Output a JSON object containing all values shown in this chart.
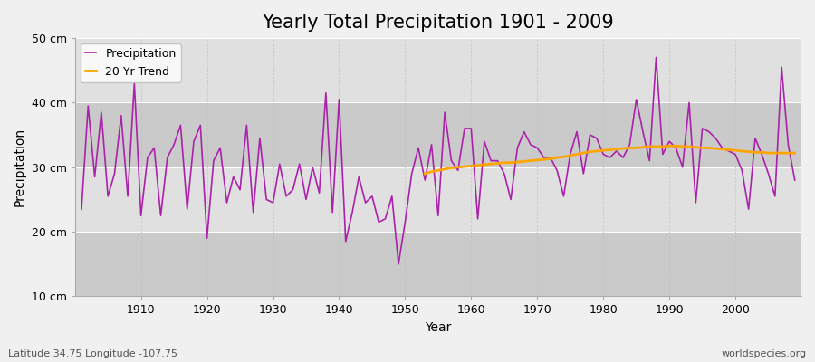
{
  "title": "Yearly Total Precipitation 1901 - 2009",
  "xlabel": "Year",
  "ylabel": "Precipitation",
  "subtitle": "Latitude 34.75 Longitude -107.75",
  "watermark": "worldspecies.org",
  "years": [
    1901,
    1902,
    1903,
    1904,
    1905,
    1906,
    1907,
    1908,
    1909,
    1910,
    1911,
    1912,
    1913,
    1914,
    1915,
    1916,
    1917,
    1918,
    1919,
    1920,
    1921,
    1922,
    1923,
    1924,
    1925,
    1926,
    1927,
    1928,
    1929,
    1930,
    1931,
    1932,
    1933,
    1934,
    1935,
    1936,
    1937,
    1938,
    1939,
    1940,
    1941,
    1942,
    1943,
    1944,
    1945,
    1946,
    1947,
    1948,
    1949,
    1950,
    1951,
    1952,
    1953,
    1954,
    1955,
    1956,
    1957,
    1958,
    1959,
    1960,
    1961,
    1962,
    1963,
    1964,
    1965,
    1966,
    1967,
    1968,
    1969,
    1970,
    1971,
    1972,
    1973,
    1974,
    1975,
    1976,
    1977,
    1978,
    1979,
    1980,
    1981,
    1982,
    1983,
    1984,
    1985,
    1986,
    1987,
    1988,
    1989,
    1990,
    1991,
    1992,
    1993,
    1994,
    1995,
    1996,
    1997,
    1998,
    1999,
    2000,
    2001,
    2002,
    2003,
    2004,
    2005,
    2006,
    2007,
    2008,
    2009
  ],
  "precipitation": [
    23.5,
    39.5,
    28.5,
    38.5,
    25.5,
    29.0,
    38.0,
    25.5,
    43.0,
    22.5,
    31.5,
    33.0,
    22.5,
    31.5,
    33.5,
    36.5,
    23.5,
    34.0,
    36.5,
    19.0,
    31.0,
    33.0,
    24.5,
    28.5,
    26.5,
    36.5,
    23.0,
    34.5,
    25.0,
    24.5,
    30.5,
    25.5,
    26.5,
    30.5,
    25.0,
    30.0,
    26.0,
    41.5,
    23.0,
    40.5,
    18.5,
    23.0,
    28.5,
    24.5,
    25.5,
    21.5,
    22.0,
    25.5,
    15.0,
    21.5,
    29.0,
    33.0,
    28.0,
    33.5,
    22.5,
    38.5,
    31.0,
    29.5,
    36.0,
    36.0,
    22.0,
    34.0,
    31.0,
    31.0,
    29.0,
    25.0,
    33.0,
    35.5,
    33.5,
    33.0,
    31.5,
    31.5,
    29.5,
    25.5,
    32.0,
    35.5,
    29.0,
    35.0,
    34.5,
    32.0,
    31.5,
    32.5,
    31.5,
    33.5,
    40.5,
    35.5,
    31.0,
    47.0,
    32.0,
    34.0,
    33.0,
    30.0,
    40.0,
    24.5,
    36.0,
    35.5,
    34.5,
    33.0,
    32.5,
    32.0,
    29.5,
    23.5,
    34.5,
    32.0,
    29.0,
    25.5,
    45.5,
    33.5,
    28.0
  ],
  "trend_years": [
    1953,
    1954,
    1955,
    1956,
    1957,
    1958,
    1959,
    1960,
    1961,
    1962,
    1963,
    1964,
    1965,
    1966,
    1967,
    1968,
    1969,
    1970,
    1971,
    1972,
    1973,
    1974,
    1975,
    1976,
    1977,
    1978,
    1979,
    1980,
    1981,
    1982,
    1983,
    1984,
    1985,
    1986,
    1987,
    1988,
    1989,
    1990,
    1991,
    1992,
    1993,
    1994,
    1995,
    1996,
    1997,
    1998,
    1999,
    2000,
    2001,
    2002,
    2003,
    2004,
    2005,
    2006,
    2007,
    2008,
    2009
  ],
  "trend": [
    29.0,
    29.3,
    29.5,
    29.7,
    29.9,
    30.0,
    30.1,
    30.2,
    30.3,
    30.4,
    30.5,
    30.6,
    30.7,
    30.7,
    30.8,
    30.9,
    31.0,
    31.1,
    31.2,
    31.3,
    31.5,
    31.6,
    31.8,
    32.0,
    32.2,
    32.4,
    32.5,
    32.6,
    32.7,
    32.8,
    32.9,
    33.0,
    33.0,
    33.1,
    33.2,
    33.2,
    33.2,
    33.3,
    33.3,
    33.2,
    33.2,
    33.1,
    33.0,
    33.0,
    32.9,
    32.8,
    32.7,
    32.6,
    32.5,
    32.4,
    32.3,
    32.3,
    32.2,
    32.2,
    32.2,
    32.2,
    32.2
  ],
  "precip_color": "#AA22AA",
  "trend_color": "#FFA500",
  "fig_bg_color": "#F0F0F0",
  "plot_bg_color": "#E8E8E8",
  "band_color_light": "#E0E0E0",
  "band_color_dark": "#CACACA",
  "ylim": [
    10,
    50
  ],
  "yticks": [
    10,
    20,
    30,
    40,
    50
  ],
  "ytick_labels": [
    "10 cm",
    "20 cm",
    "30 cm",
    "40 cm",
    "50 cm"
  ],
  "xlim": [
    1900,
    2010
  ],
  "xticks": [
    1910,
    1920,
    1930,
    1940,
    1950,
    1960,
    1970,
    1980,
    1990,
    2000
  ],
  "hgrid_color": "#FFFFFF",
  "vgrid_color": "#C0C0C0",
  "title_fontsize": 15,
  "axis_fontsize": 9,
  "legend_fontsize": 9
}
